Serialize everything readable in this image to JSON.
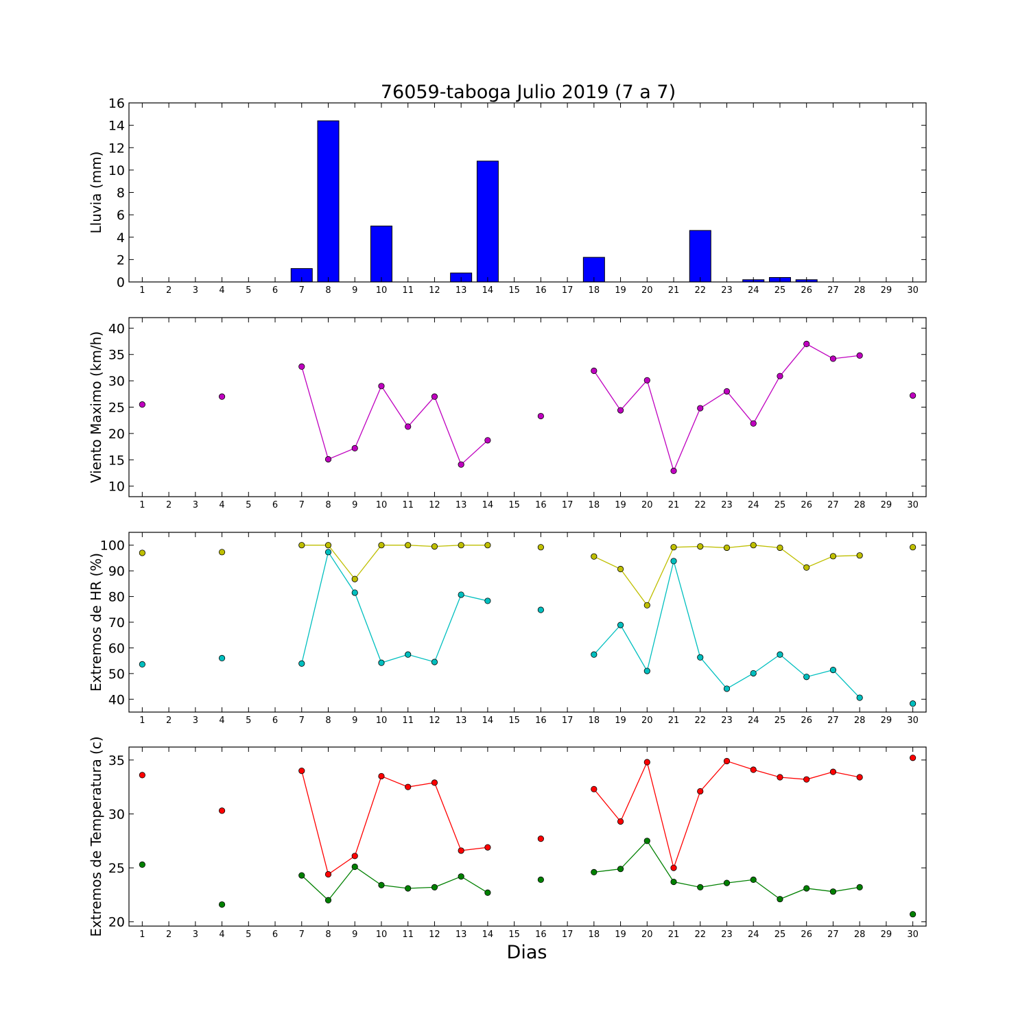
{
  "figure": {
    "title": "76059-taboga Julio 2019  (7 a 7)",
    "xlabel": "Dias"
  },
  "chart_data": [
    {
      "type": "bar",
      "ylabel": "Lluvia (mm)",
      "ylim": [
        0,
        16
      ],
      "yticks": [
        0,
        2,
        4,
        6,
        8,
        10,
        12,
        14,
        16
      ],
      "xlim": [
        0.5,
        30.5
      ],
      "xticks": [
        1,
        2,
        3,
        4,
        5,
        6,
        7,
        8,
        9,
        10,
        11,
        12,
        13,
        14,
        15,
        16,
        17,
        18,
        19,
        20,
        21,
        22,
        23,
        24,
        25,
        26,
        27,
        28,
        29,
        30
      ],
      "x": [
        1,
        2,
        3,
        4,
        5,
        6,
        7,
        8,
        9,
        10,
        11,
        12,
        13,
        14,
        15,
        16,
        17,
        18,
        19,
        20,
        21,
        22,
        23,
        24,
        25,
        26,
        27,
        28,
        29,
        30
      ],
      "values": [
        0,
        0,
        0,
        0,
        0,
        0,
        1.2,
        14.4,
        0,
        5.0,
        0,
        0,
        0.8,
        10.8,
        0,
        0,
        0,
        2.2,
        0,
        0,
        0,
        4.6,
        0,
        0.2,
        0.4,
        0.2,
        0,
        0,
        0,
        0
      ],
      "bar_color": "#0000ff"
    },
    {
      "type": "line",
      "ylabel": "Viento Maximo (km/h)",
      "ylim": [
        8,
        42
      ],
      "yticks": [
        10,
        15,
        20,
        25,
        30,
        35,
        40
      ],
      "xlim": [
        0.5,
        30.5
      ],
      "xticks": [
        1,
        2,
        3,
        4,
        5,
        6,
        7,
        8,
        9,
        10,
        11,
        12,
        13,
        14,
        15,
        16,
        17,
        18,
        19,
        20,
        21,
        22,
        23,
        24,
        25,
        26,
        27,
        28,
        29,
        30
      ],
      "x": [
        1,
        2,
        3,
        4,
        5,
        6,
        7,
        8,
        9,
        10,
        11,
        12,
        13,
        14,
        15,
        16,
        17,
        18,
        19,
        20,
        21,
        22,
        23,
        24,
        25,
        26,
        27,
        28,
        29,
        30
      ],
      "series": [
        {
          "color": "#bf00bf",
          "values": [
            25.5,
            null,
            null,
            27.0,
            null,
            null,
            32.7,
            15.1,
            17.2,
            29.0,
            21.3,
            27.0,
            14.1,
            18.7,
            null,
            23.3,
            null,
            31.9,
            24.4,
            30.1,
            12.9,
            24.8,
            28.0,
            21.9,
            30.9,
            37.0,
            34.2,
            34.8,
            null,
            27.2
          ]
        }
      ]
    },
    {
      "type": "line",
      "ylabel": "Extremos de HR (%)",
      "ylim": [
        35,
        105
      ],
      "yticks": [
        40,
        50,
        60,
        70,
        80,
        90,
        100
      ],
      "xlim": [
        0.5,
        30.5
      ],
      "xticks": [
        1,
        2,
        3,
        4,
        5,
        6,
        7,
        8,
        9,
        10,
        11,
        12,
        13,
        14,
        15,
        16,
        17,
        18,
        19,
        20,
        21,
        22,
        23,
        24,
        25,
        26,
        27,
        28,
        29,
        30
      ],
      "x": [
        1,
        2,
        3,
        4,
        5,
        6,
        7,
        8,
        9,
        10,
        11,
        12,
        13,
        14,
        15,
        16,
        17,
        18,
        19,
        20,
        21,
        22,
        23,
        24,
        25,
        26,
        27,
        28,
        29,
        30
      ],
      "series": [
        {
          "color": "#bfbf00",
          "values": [
            97.0,
            null,
            null,
            97.3,
            null,
            null,
            100.0,
            100.0,
            86.8,
            100.0,
            100.0,
            99.5,
            100.0,
            100.0,
            null,
            99.2,
            null,
            95.6,
            90.7,
            76.6,
            99.2,
            99.5,
            99.0,
            100.0,
            99.0,
            91.3,
            95.7,
            96.0,
            null,
            99.2
          ]
        },
        {
          "color": "#00bfbf",
          "values": [
            53.6,
            null,
            null,
            56.0,
            null,
            null,
            53.9,
            97.3,
            81.5,
            54.2,
            57.4,
            54.5,
            80.7,
            78.3,
            null,
            74.8,
            null,
            57.4,
            68.9,
            51.0,
            93.8,
            56.3,
            44.1,
            50.1,
            57.4,
            48.7,
            51.4,
            40.6,
            null,
            38.3
          ]
        }
      ]
    },
    {
      "type": "line",
      "ylabel": "Extremos de Temperatura (c)",
      "ylim": [
        19.6,
        36.2
      ],
      "yticks": [
        20,
        25,
        30,
        35
      ],
      "xlim": [
        0.5,
        30.5
      ],
      "xticks": [
        1,
        2,
        3,
        4,
        5,
        6,
        7,
        8,
        9,
        10,
        11,
        12,
        13,
        14,
        15,
        16,
        17,
        18,
        19,
        20,
        21,
        22,
        23,
        24,
        25,
        26,
        27,
        28,
        29,
        30
      ],
      "x": [
        1,
        2,
        3,
        4,
        5,
        6,
        7,
        8,
        9,
        10,
        11,
        12,
        13,
        14,
        15,
        16,
        17,
        18,
        19,
        20,
        21,
        22,
        23,
        24,
        25,
        26,
        27,
        28,
        29,
        30
      ],
      "series": [
        {
          "color": "#ff0000",
          "values": [
            33.6,
            null,
            null,
            30.3,
            null,
            null,
            34.0,
            24.4,
            26.1,
            33.5,
            32.5,
            32.9,
            26.6,
            26.9,
            null,
            27.7,
            null,
            32.3,
            29.3,
            34.8,
            25.0,
            32.1,
            34.9,
            34.1,
            33.4,
            33.2,
            33.9,
            33.4,
            null,
            35.2
          ]
        },
        {
          "color": "#008000",
          "values": [
            25.3,
            null,
            null,
            21.6,
            null,
            null,
            24.3,
            22.0,
            25.1,
            23.4,
            23.1,
            23.2,
            24.2,
            22.7,
            null,
            23.9,
            null,
            24.6,
            24.9,
            27.5,
            23.7,
            23.2,
            23.6,
            23.9,
            22.1,
            23.1,
            22.8,
            23.2,
            null,
            20.7
          ]
        }
      ]
    }
  ]
}
